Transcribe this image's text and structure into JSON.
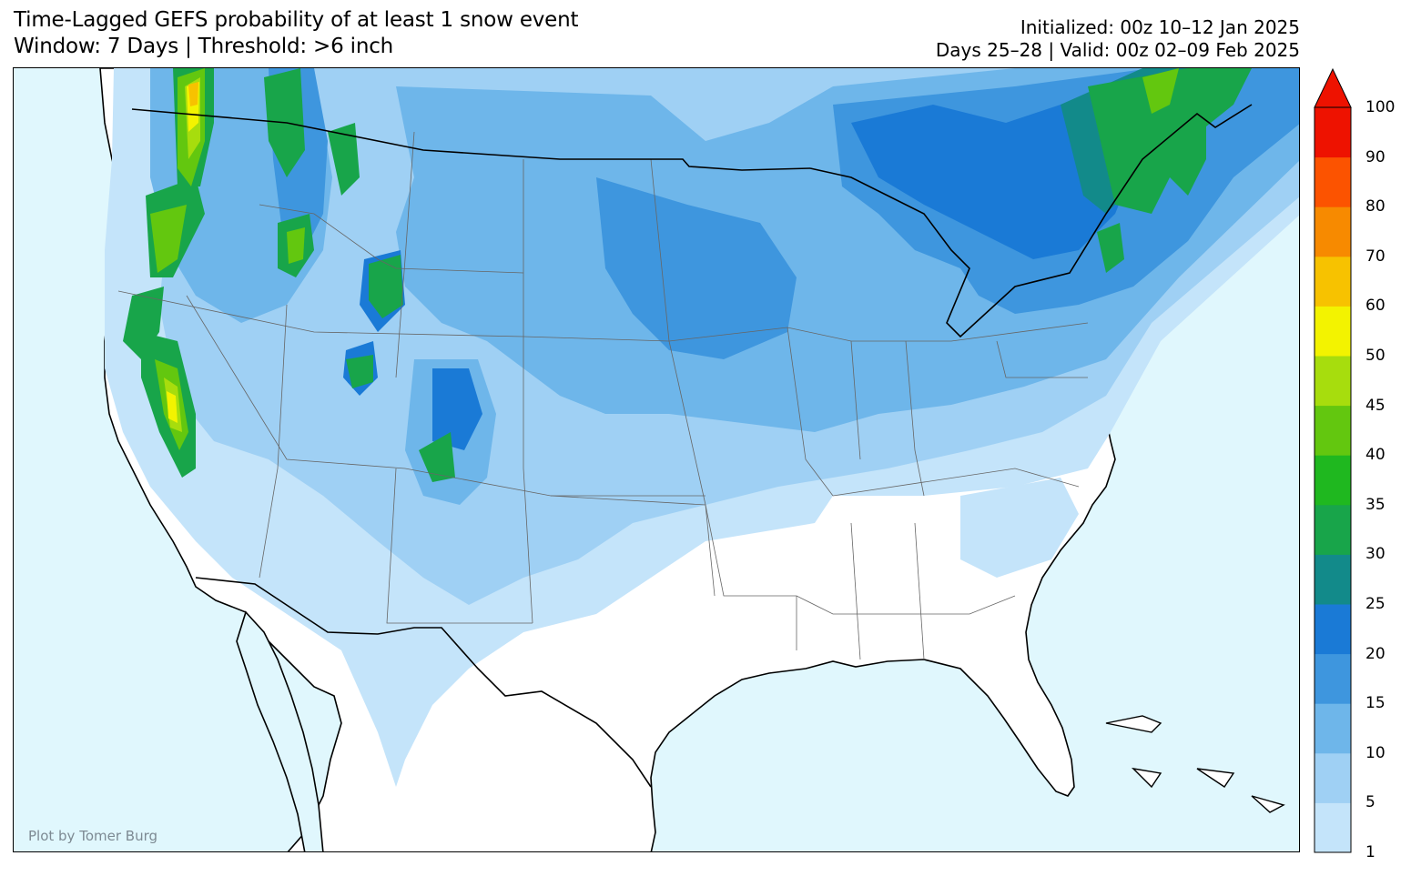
{
  "header": {
    "title_line1": "Time-Lagged GEFS probability of at least 1 snow event",
    "title_line2": "Window: 7 Days | Threshold: >6 inch",
    "initialized": "Initialized: 00z 10–12 Jan 2025",
    "valid": "Days 25–28 | Valid: 00z 02–09 Feb 2025"
  },
  "map": {
    "credit": "Plot by Tomer Burg",
    "ocean_color": "#e0f7fd",
    "land_color": "#ffffff"
  },
  "colorbar": {
    "labels": [
      "100",
      "90",
      "80",
      "70",
      "60",
      "50",
      "45",
      "40",
      "35",
      "30",
      "25",
      "20",
      "15",
      "10",
      "5",
      "1"
    ],
    "colors": [
      "#c4e4fa",
      "#9fd0f4",
      "#6eb6ea",
      "#3e96de",
      "#1a7ad6",
      "#128a8a",
      "#18a54a",
      "#1fb81f",
      "#63c70f",
      "#a7dd0d",
      "#f3f300",
      "#f7c200",
      "#f78a00",
      "#fc5300",
      "#ee1200"
    ],
    "extend_color": "#ee1200"
  }
}
